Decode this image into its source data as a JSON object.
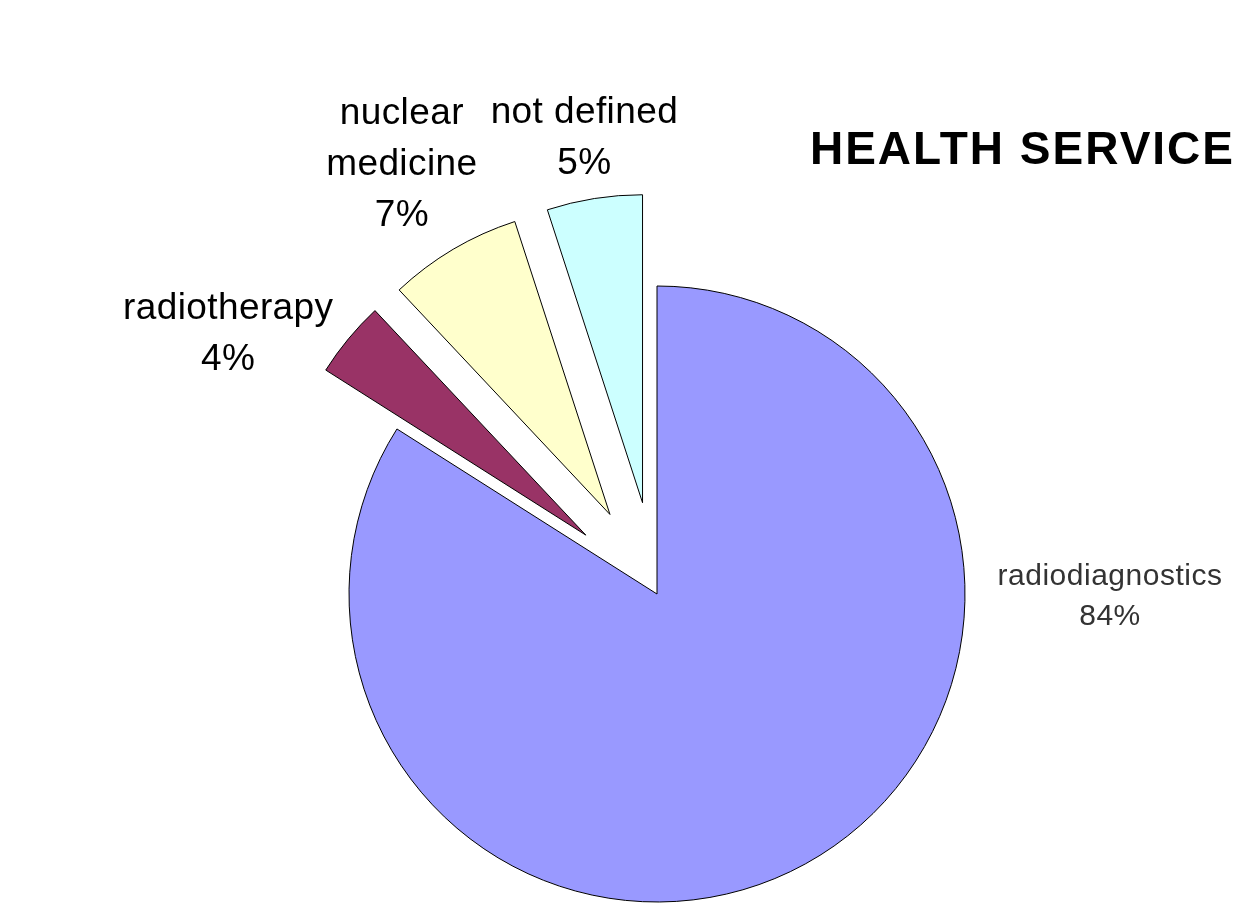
{
  "chart_data": {
    "type": "pie",
    "title": "HEALTH SERVICE",
    "categories": [
      "radiodiagnostics",
      "radiotherapy",
      "nuclear medicine",
      "not defined"
    ],
    "values": [
      84,
      4,
      7,
      5
    ],
    "colors": [
      "#9999ff",
      "#993366",
      "#ffffcc",
      "#ccffff"
    ],
    "value_labels": [
      "84%",
      "4%",
      "7%",
      "5%"
    ]
  }
}
